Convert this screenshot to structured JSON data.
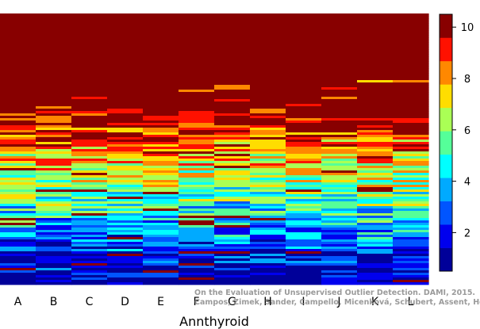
{
  "chart_data": {
    "type": "heatmap",
    "xlabel": "Annthyroid",
    "categories": [
      "A",
      "B",
      "C",
      "D",
      "E",
      "F",
      "G",
      "H",
      "I",
      "J",
      "K",
      "L"
    ],
    "colorbar": {
      "min": 0.5,
      "max": 10.5,
      "ticks": [
        2,
        4,
        6,
        8,
        10
      ],
      "colors": [
        "#000099",
        "#0000ee",
        "#0055ff",
        "#00aaff",
        "#00ffff",
        "#55ff99",
        "#aaff55",
        "#ffdd00",
        "#ff8800",
        "#ff1100",
        "#880000"
      ]
    },
    "columns": [
      {
        "name": "A",
        "top_value": 10,
        "stripe_level_min": 8,
        "noise_seed": 11
      },
      {
        "name": "B",
        "top_value": 10,
        "stripe_level_min": 8,
        "noise_seed": 23
      },
      {
        "name": "C",
        "top_value": 10,
        "stripe_level_min": 9,
        "noise_seed": 37
      },
      {
        "name": "D",
        "top_value": 10,
        "stripe_level_min": 9,
        "noise_seed": 41
      },
      {
        "name": "E",
        "top_value": 10,
        "stripe_level_min": 9,
        "noise_seed": 53
      },
      {
        "name": "F",
        "top_value": 10,
        "stripe_level_min": 7,
        "noise_seed": 67
      },
      {
        "name": "G",
        "top_value": 10,
        "stripe_level_min": 8,
        "noise_seed": 71
      },
      {
        "name": "H",
        "top_value": 10,
        "stripe_level_min": 7,
        "noise_seed": 83
      },
      {
        "name": "I",
        "top_value": 10,
        "stripe_level_min": 8,
        "noise_seed": 97
      },
      {
        "name": "J",
        "top_value": 10,
        "stripe_level_min": 8,
        "noise_seed": 101
      },
      {
        "name": "K",
        "top_value": 10,
        "stripe_level_min": 7,
        "noise_seed": 113
      },
      {
        "name": "L",
        "top_value": 10,
        "stripe_level_min": 8,
        "noise_seed": 127
      }
    ]
  },
  "watermark": {
    "line1": "On the Evaluation of Unsupervised Outlier Detection. DAMI, 2015.",
    "line2": "Campos, Zimek, Sander, Campello, Micenková, Schubert, Assent, Houle"
  }
}
